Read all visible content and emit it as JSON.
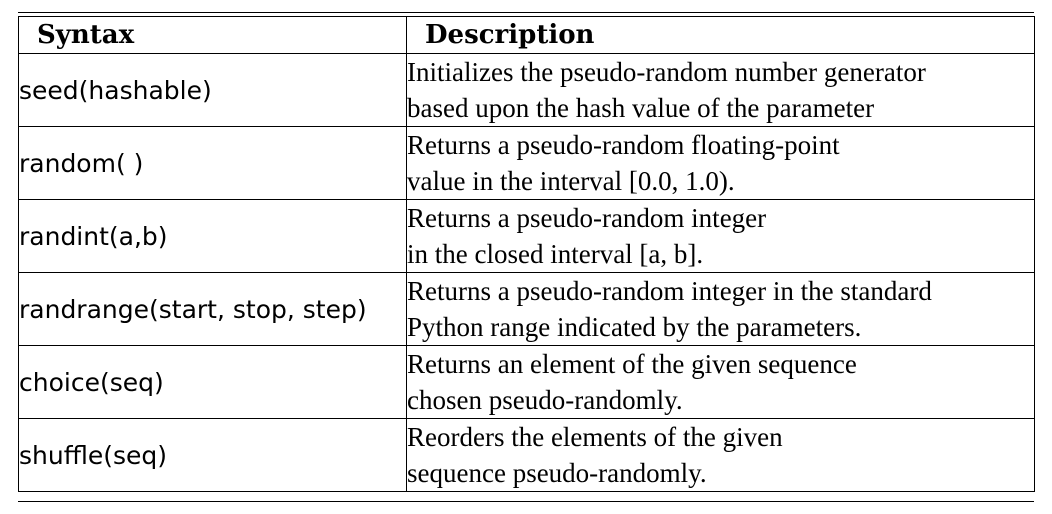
{
  "header": {
    "syntax": "Syntax",
    "description": "Description"
  },
  "rows": [
    {
      "syntax": "seed(hashable)",
      "desc_line1": "Initializes the pseudo-random number generator",
      "desc_line2": "based upon the hash value of the parameter"
    },
    {
      "syntax": "random( )",
      "desc_line1": "Returns a pseudo-random floating-point",
      "desc_line2": "value in the interval [0.0, 1.0)."
    },
    {
      "syntax": "randint(a,b)",
      "desc_line1": "Returns a pseudo-random integer",
      "desc_line2": "in the closed interval [a, b]."
    },
    {
      "syntax": "randrange(start, stop, step)",
      "desc_line1": "Returns a pseudo-random integer in the standard",
      "desc_line2": "Python range indicated by the parameters."
    },
    {
      "syntax": "choice(seq)",
      "desc_line1": "Returns an element of the given sequence",
      "desc_line2": "chosen pseudo-randomly."
    },
    {
      "syntax": "shuffle(seq)",
      "desc_line1": "Reorders the elements of the given",
      "desc_line2": "sequence pseudo-randomly."
    }
  ]
}
